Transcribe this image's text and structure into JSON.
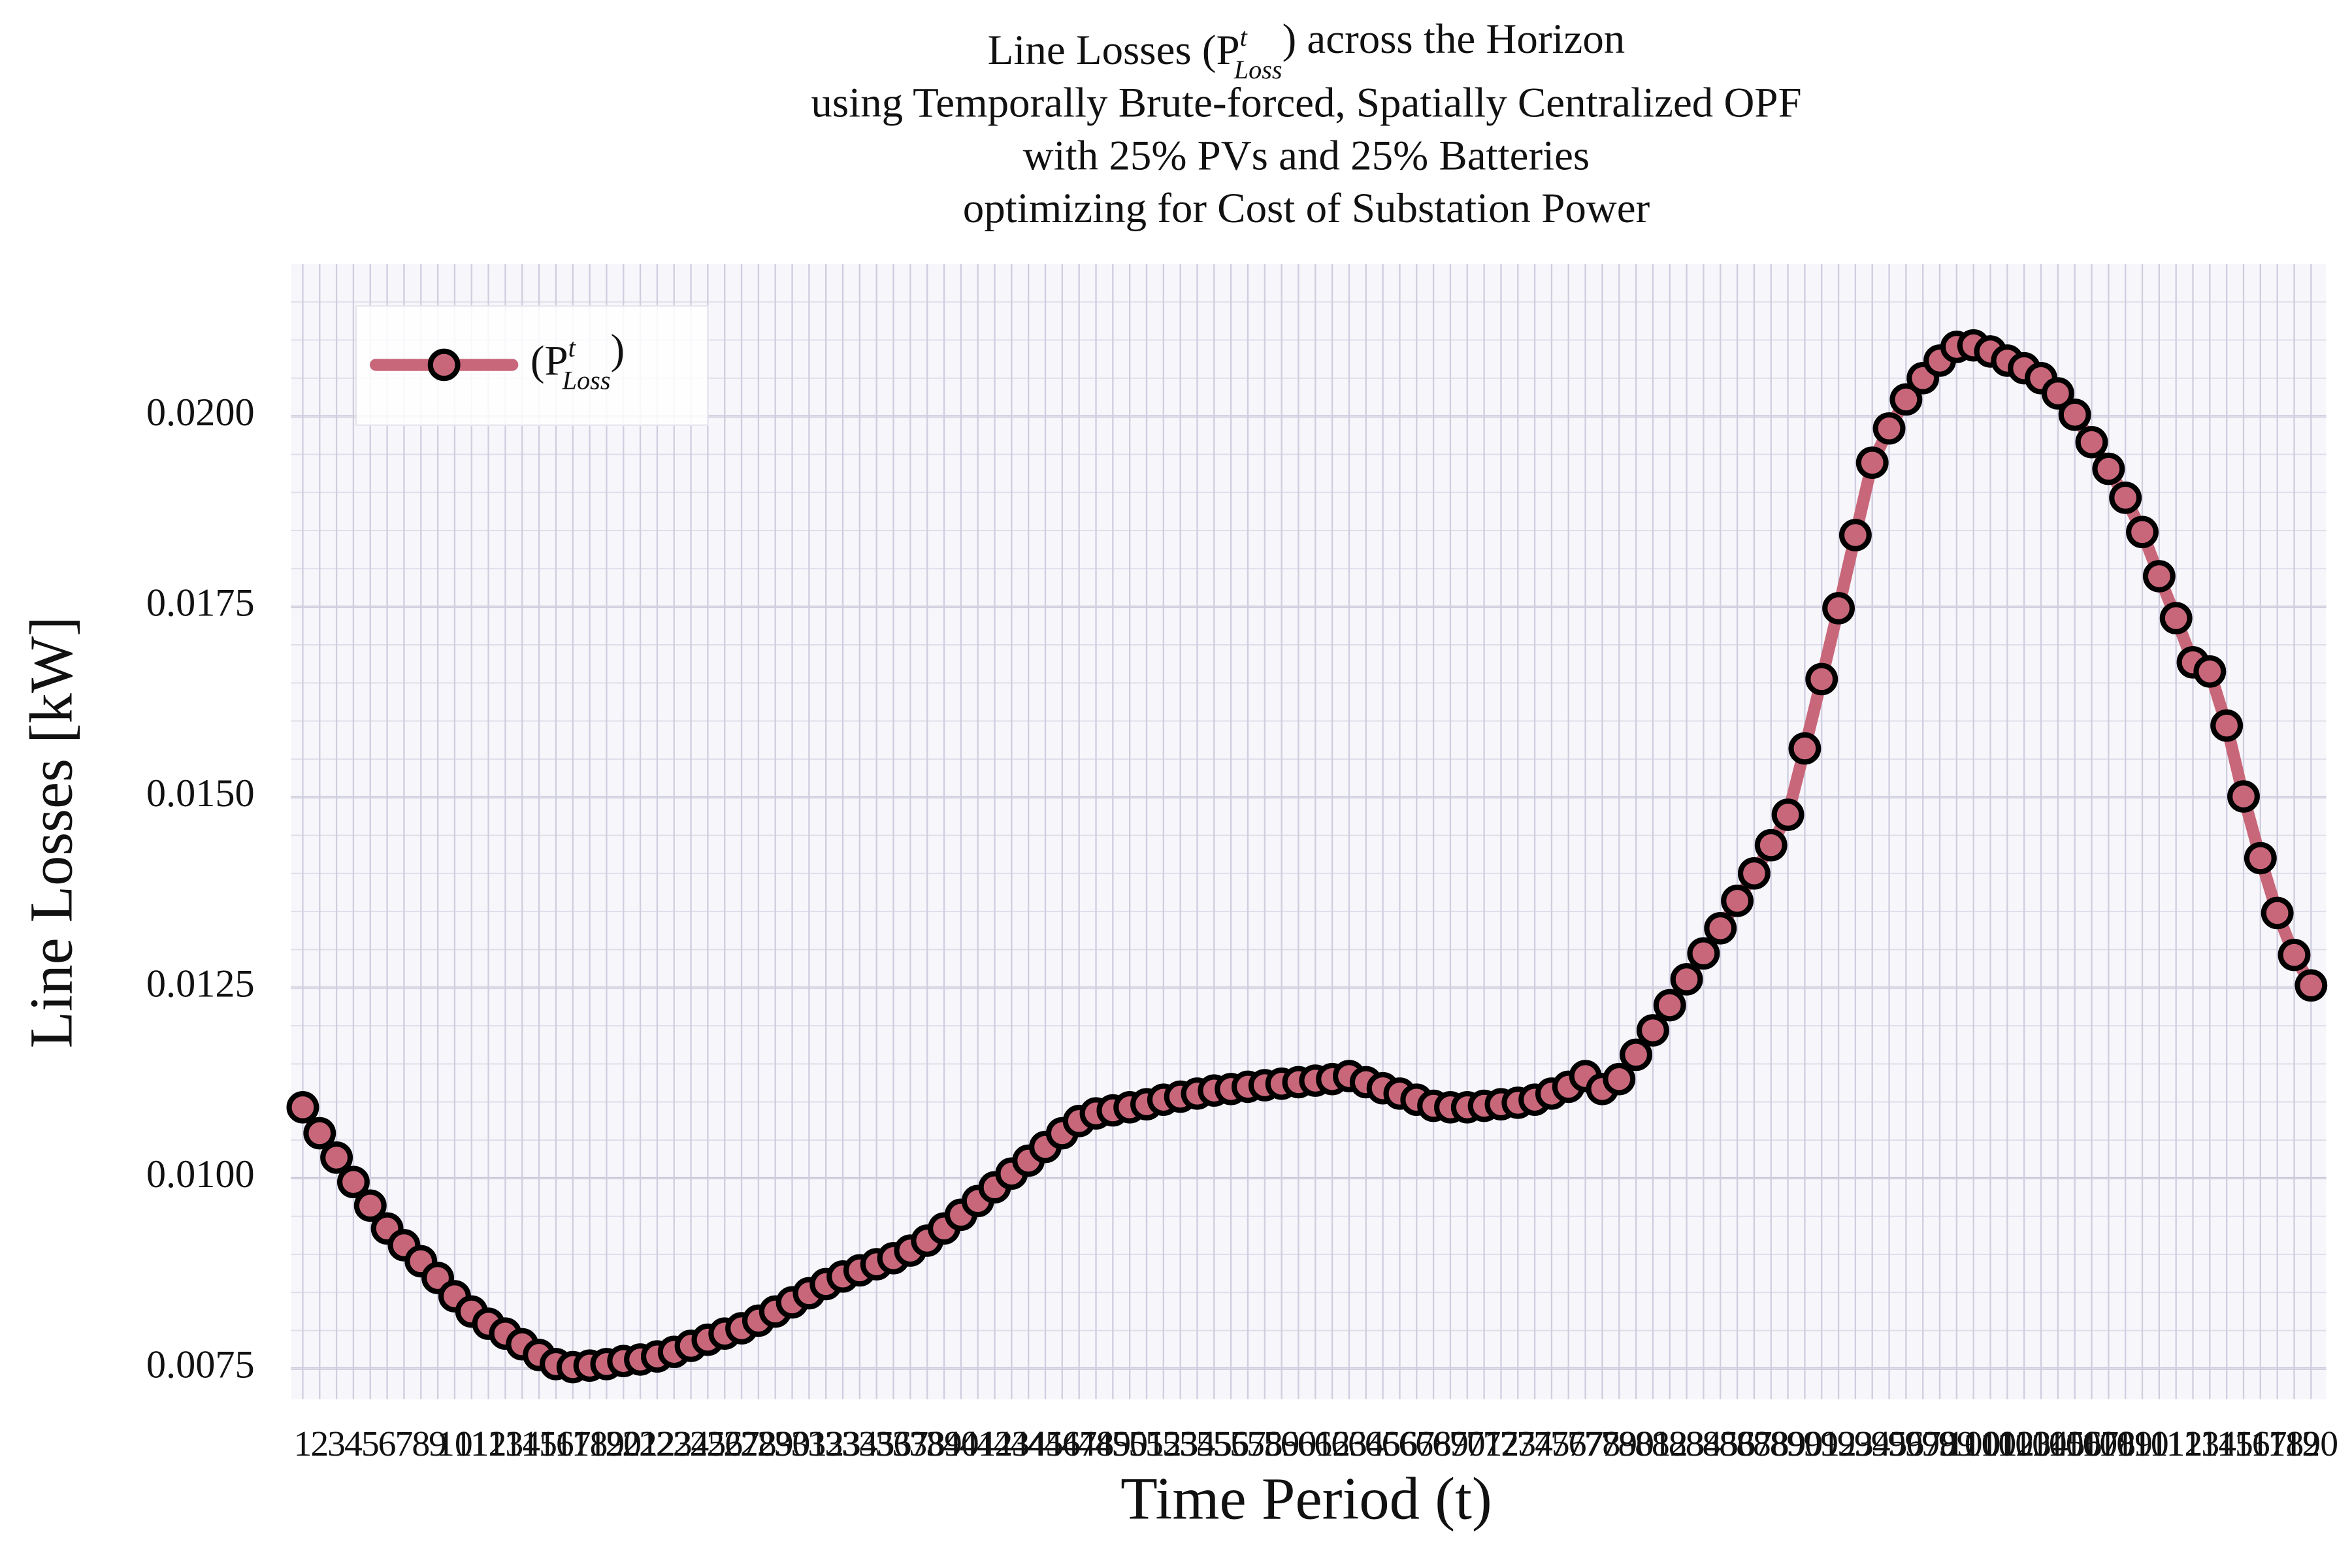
{
  "chart_data": {
    "type": "line",
    "title": [
      "Line Losses (P^{t}_{Loss}) across the Horizon",
      "using Temporally Brute-forced, Spatially Centralized OPF",
      "with 25% PVs and 25% Batteries",
      "optimizing for Cost of Substation Power"
    ],
    "xlabel": "Time Period (t)",
    "ylabel": "Line Losses [kW]",
    "x": [
      1,
      2,
      3,
      4,
      5,
      6,
      7,
      8,
      9,
      10,
      11,
      12,
      13,
      14,
      15,
      16,
      17,
      18,
      19,
      20,
      21,
      22,
      23,
      24,
      25,
      26,
      27,
      28,
      29,
      30,
      31,
      32,
      33,
      34,
      35,
      36,
      37,
      38,
      39,
      40,
      41,
      42,
      43,
      44,
      45,
      46,
      47,
      48,
      49,
      50,
      51,
      52,
      53,
      54,
      55,
      56,
      57,
      58,
      59,
      60,
      61,
      62,
      63,
      64,
      65,
      66,
      67,
      68,
      69,
      70,
      71,
      72,
      73,
      74,
      75,
      76,
      77,
      78,
      79,
      80,
      81,
      82,
      83,
      84,
      85,
      86,
      87,
      88,
      89,
      90,
      91,
      92,
      93,
      94,
      95,
      96,
      97,
      98,
      99,
      100,
      101,
      102,
      103,
      104,
      105,
      106,
      107,
      108,
      109,
      110,
      111,
      112,
      113,
      114,
      115,
      116,
      117,
      118,
      119,
      120
    ],
    "series": [
      {
        "name": "(P^{t}_{Loss})",
        "color": "#c9677a",
        "marker_edge": "#000000",
        "values": [
          0.01093,
          0.01059,
          0.01027,
          0.00995,
          0.00964,
          0.00934,
          0.00912,
          0.00891,
          0.00869,
          0.00845,
          0.00825,
          0.00809,
          0.00796,
          0.00782,
          0.00768,
          0.00756,
          0.00752,
          0.00754,
          0.00756,
          0.0076,
          0.00762,
          0.00766,
          0.00772,
          0.0078,
          0.00788,
          0.00796,
          0.00803,
          0.00813,
          0.00825,
          0.00837,
          0.00849,
          0.00861,
          0.00871,
          0.00879,
          0.00887,
          0.00895,
          0.00905,
          0.00918,
          0.00934,
          0.00952,
          0.0097,
          0.00988,
          0.01006,
          0.01023,
          0.01041,
          0.01059,
          0.01075,
          0.01085,
          0.01089,
          0.01093,
          0.01097,
          0.01103,
          0.01107,
          0.01111,
          0.01115,
          0.01117,
          0.0112,
          0.01122,
          0.01124,
          0.01126,
          0.01128,
          0.0113,
          0.01134,
          0.01126,
          0.01118,
          0.01111,
          0.01103,
          0.01095,
          0.01093,
          0.01093,
          0.01095,
          0.01097,
          0.01099,
          0.01103,
          0.01111,
          0.0112,
          0.01134,
          0.01117,
          0.0113,
          0.01162,
          0.01194,
          0.01227,
          0.01261,
          0.01295,
          0.01328,
          0.01364,
          0.014,
          0.01437,
          0.01477,
          0.01564,
          0.01655,
          0.01748,
          0.01844,
          0.01939,
          0.01984,
          0.02022,
          0.0205,
          0.02073,
          0.02091,
          0.02093,
          0.02085,
          0.02073,
          0.02063,
          0.0205,
          0.0203,
          0.02002,
          0.01966,
          0.01931,
          0.01893,
          0.01848,
          0.0179,
          0.01735,
          0.01677,
          0.01665,
          0.01594,
          0.01501,
          0.0142,
          0.01348,
          0.01293,
          0.01253
        ]
      }
    ],
    "xlim": [
      0.3,
      120.9
    ],
    "ylim": [
      0.0071,
      0.022
    ],
    "xticks": [
      1,
      2,
      3,
      4,
      5,
      6,
      7,
      8,
      9,
      10,
      11,
      12,
      13,
      14,
      15,
      16,
      17,
      18,
      19,
      20,
      21,
      22,
      23,
      24,
      25,
      26,
      27,
      28,
      29,
      30,
      31,
      32,
      33,
      34,
      35,
      36,
      37,
      38,
      39,
      40,
      41,
      42,
      43,
      44,
      45,
      46,
      47,
      48,
      49,
      50,
      51,
      52,
      53,
      54,
      55,
      56,
      57,
      58,
      59,
      60,
      61,
      62,
      63,
      64,
      65,
      66,
      67,
      68,
      69,
      70,
      71,
      72,
      73,
      74,
      75,
      76,
      77,
      78,
      79,
      80,
      81,
      82,
      83,
      84,
      85,
      86,
      87,
      88,
      89,
      90,
      91,
      92,
      93,
      94,
      95,
      96,
      97,
      98,
      99,
      100,
      101,
      102,
      103,
      104,
      105,
      106,
      107,
      108,
      109,
      110,
      111,
      112,
      113,
      114,
      115,
      116,
      117,
      118,
      119,
      120
    ],
    "yticks": [
      0.0075,
      {
        "value": 0.01,
        "label": "0.0100"
      },
      0.0125,
      {
        "value": 0.015,
        "label": "0.0150"
      },
      0.0175,
      {
        "value": 0.02,
        "label": "0.0200"
      }
    ],
    "grid": true,
    "legend": "upper left"
  }
}
